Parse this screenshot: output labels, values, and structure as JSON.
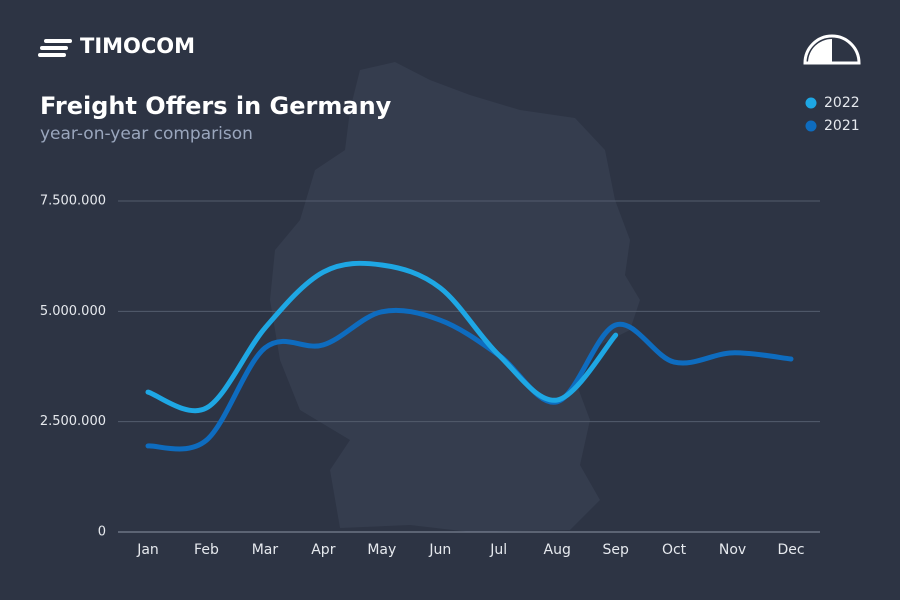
{
  "brand": "TIMOCOM",
  "chart_data": {
    "type": "line",
    "title": "Freight Offers in Germany",
    "subtitle": "year-on-year comparison",
    "categories": [
      "Jan",
      "Feb",
      "Mar",
      "Apr",
      "May",
      "Jun",
      "Jul",
      "Aug",
      "Sep",
      "Oct",
      "Nov",
      "Dec"
    ],
    "series": [
      {
        "name": "2022",
        "color": "#1ea7e4",
        "values": [
          3170000,
          2810000,
          4620000,
          5890000,
          6050000,
          5530000,
          4010000,
          2990000,
          4460000,
          null,
          null,
          null
        ]
      },
      {
        "name": "2021",
        "color": "#0e6cbf",
        "values": [
          1950000,
          2080000,
          4170000,
          4240000,
          4990000,
          4800000,
          4010000,
          2950000,
          4690000,
          3850000,
          4060000,
          3920000
        ]
      }
    ],
    "ylim": [
      0,
      7500000
    ],
    "yticks": [
      0,
      {
        "value": 2500000,
        "label": "2.500.000"
      },
      {
        "value": 5000000,
        "label": "5.000.000"
      },
      {
        "value": 7500000,
        "label": "7.500.000"
      }
    ],
    "grid": true,
    "legend": "top-right",
    "smooth": true
  }
}
